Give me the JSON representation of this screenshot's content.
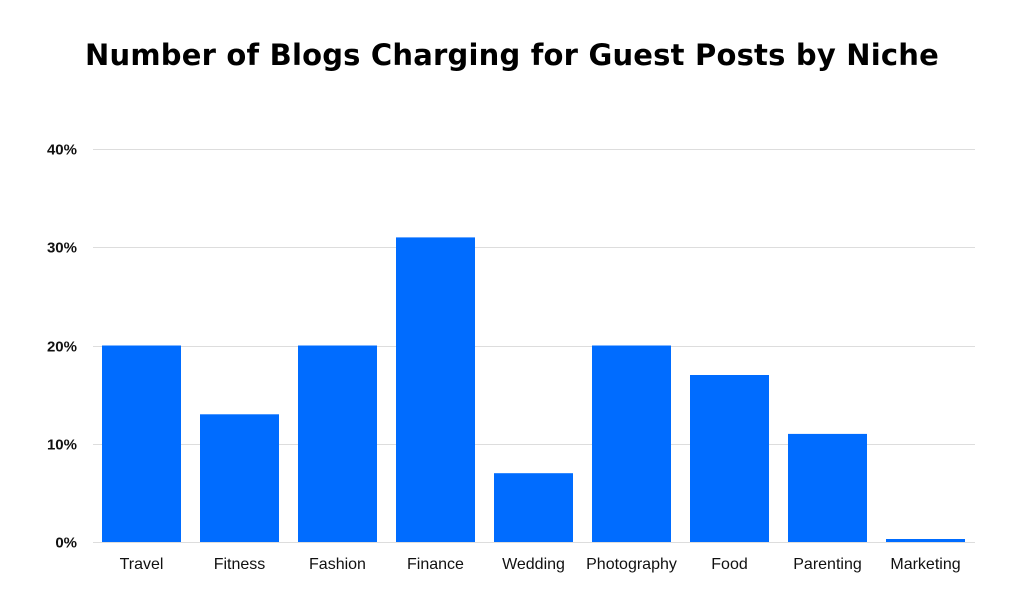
{
  "chart_data": {
    "type": "bar",
    "title": "Number of Blogs Charging for Guest Posts by Niche",
    "xlabel": "",
    "ylabel": "",
    "categories": [
      "Travel",
      "Fitness",
      "Fashion",
      "Finance",
      "Wedding",
      "Photography",
      "Food",
      "Parenting",
      "Marketing"
    ],
    "values": [
      20,
      13,
      20,
      31,
      7,
      20,
      17,
      11,
      0.3
    ],
    "ylim": [
      0,
      40
    ],
    "yticks": [
      0,
      10,
      20,
      30,
      40
    ],
    "ytick_labels": [
      "0%",
      "10%",
      "20%",
      "30%",
      "40%"
    ],
    "grid": true,
    "legend": "none",
    "bar_color": "#006cff",
    "grid_color": "#dddddd"
  }
}
